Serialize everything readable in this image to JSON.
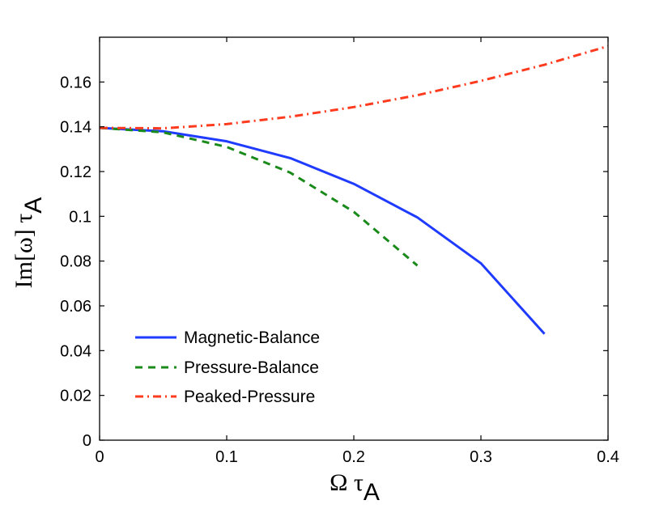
{
  "chart_data": {
    "type": "line",
    "xlabel": {
      "main": "Ω τ",
      "subscript": "A"
    },
    "ylabel": {
      "prefix": "Im[ω] τ",
      "subscript": "A"
    },
    "xlim": [
      0,
      0.4
    ],
    "ylim": [
      0,
      0.18
    ],
    "xticks": [
      0,
      0.1,
      0.2,
      0.3,
      0.4
    ],
    "xtick_labels": [
      "0",
      "0.1",
      "0.2",
      "0.3",
      "0.4"
    ],
    "yticks": [
      0,
      0.02,
      0.04,
      0.06,
      0.08,
      0.1,
      0.12,
      0.14,
      0.16
    ],
    "ytick_labels": [
      "0",
      "0.02",
      "0.04",
      "0.06",
      "0.08",
      "0.1",
      "0.12",
      "0.14",
      "0.16"
    ],
    "grid": false,
    "legend_position": "bottom-left",
    "series": [
      {
        "name": "Magnetic-Balance",
        "style": "solid",
        "color": "#1f3bff",
        "x": [
          0,
          0.05,
          0.1,
          0.15,
          0.2,
          0.25,
          0.3,
          0.35
        ],
        "y": [
          0.1395,
          0.138,
          0.1335,
          0.126,
          0.1145,
          0.0995,
          0.079,
          0.0475
        ]
      },
      {
        "name": "Pressure-Balance",
        "style": "dashed",
        "color": "#1a8a1a",
        "x": [
          0,
          0.05,
          0.1,
          0.15,
          0.2,
          0.25
        ],
        "y": [
          0.1395,
          0.1375,
          0.131,
          0.1195,
          0.102,
          0.078
        ]
      },
      {
        "name": "Peaked-Pressure",
        "style": "dashdot",
        "color": "#ff3b1f",
        "x": [
          0,
          0.05,
          0.1,
          0.15,
          0.2,
          0.25,
          0.3,
          0.35,
          0.4
        ],
        "y": [
          0.1395,
          0.1393,
          0.1412,
          0.1445,
          0.1488,
          0.1541,
          0.1605,
          0.1677,
          0.176
        ]
      }
    ]
  }
}
